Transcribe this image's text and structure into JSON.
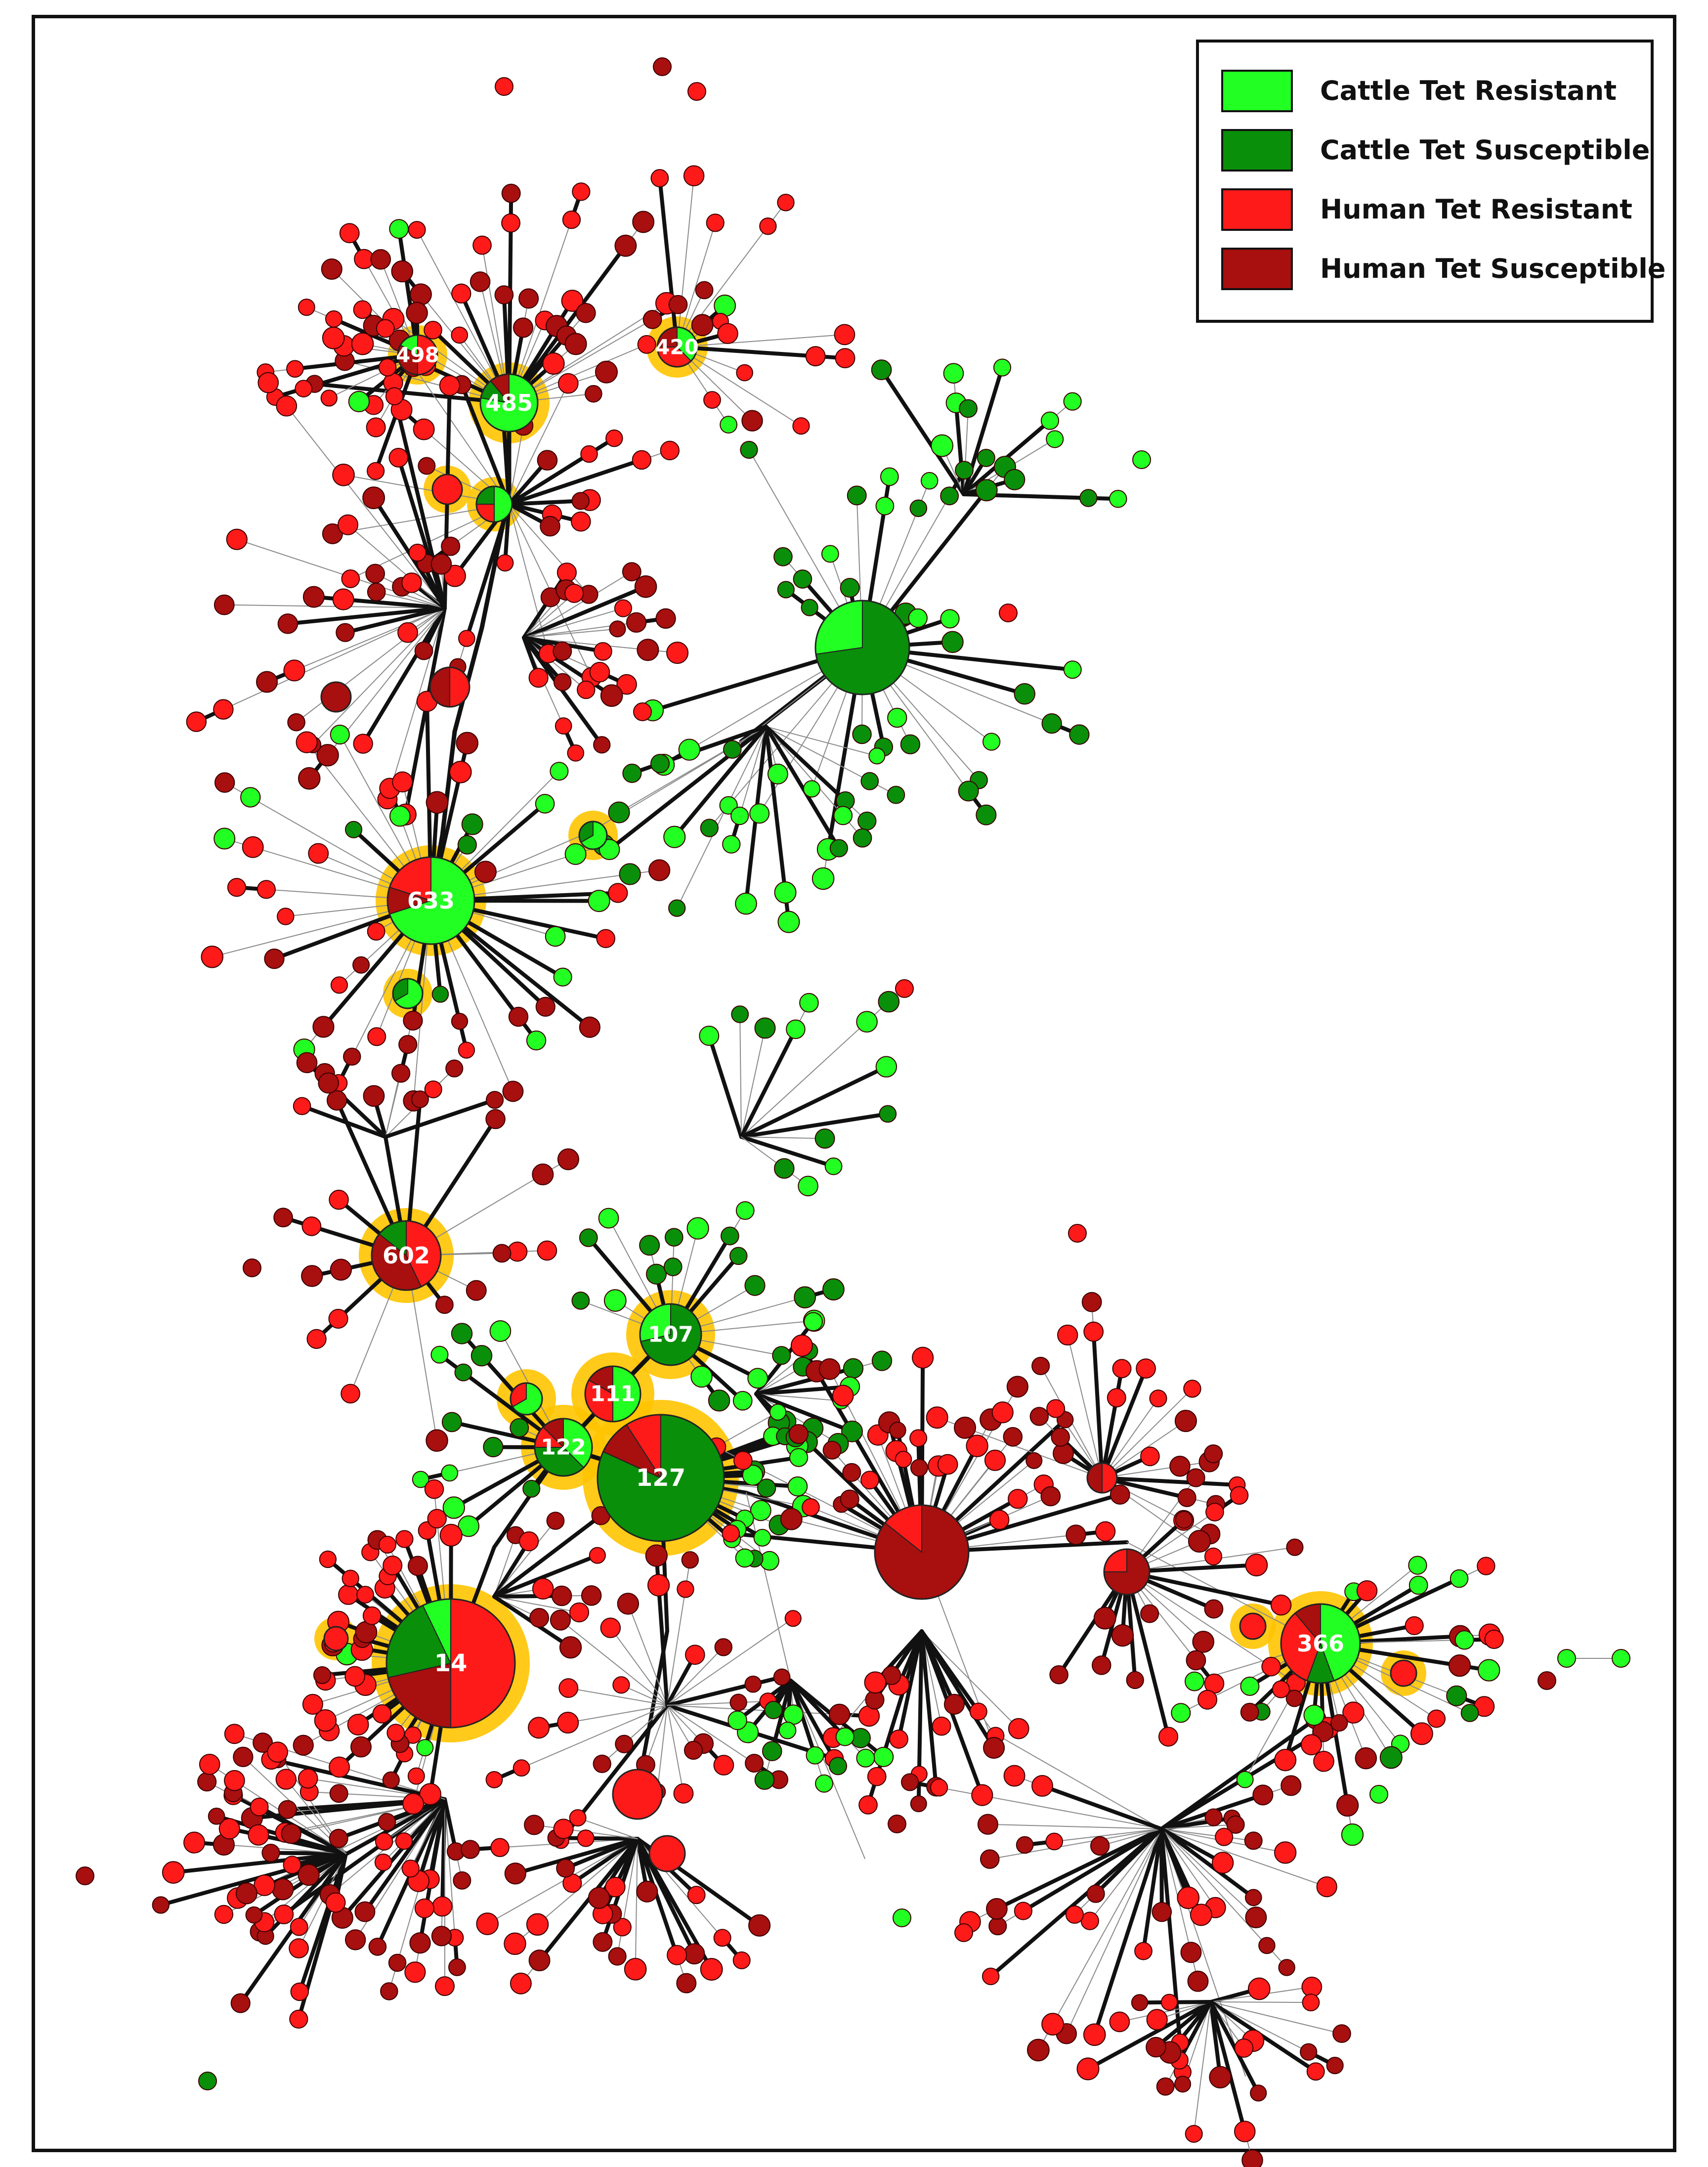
{
  "legend": {
    "items": [
      {
        "label": "Cattle Tet Resistant",
        "color": "#22ff22"
      },
      {
        "label": "Cattle Tet Susceptible",
        "color": "#0a8f0a"
      },
      {
        "label": "Human Tet Resistant",
        "color": "#ff1a1a"
      },
      {
        "label": "Human Tet Susceptible",
        "color": "#a80f0f"
      }
    ]
  },
  "colors": {
    "cattle_resistant": "#22ff22",
    "cattle_susceptible": "#0a8f0a",
    "human_resistant": "#ff1a1a",
    "human_susceptible": "#a80f0f",
    "halo": "#ffc400",
    "edge": "#111111"
  },
  "labeled_nodes": {
    "n498": "498",
    "n420": "420",
    "n485": "485",
    "n633": "633",
    "n602": "602",
    "n107": "107",
    "n111": "111",
    "n122": "122",
    "n127": "127",
    "n14": "14",
    "n366": "366"
  }
}
